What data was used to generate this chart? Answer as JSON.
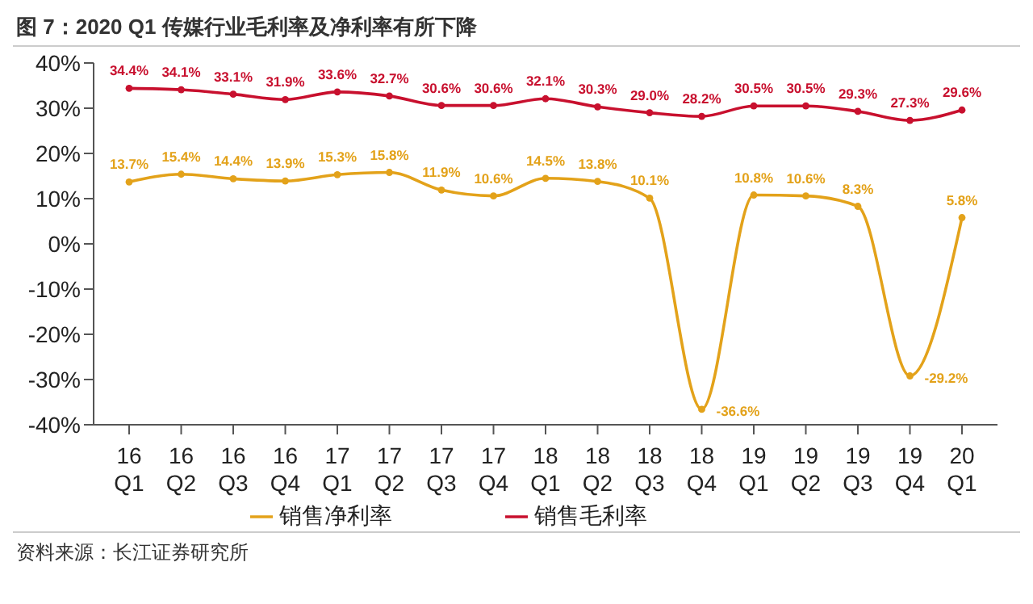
{
  "chart_data": {
    "type": "line",
    "title": "图 7：2020 Q1 传媒行业毛利率及净利率有所下降",
    "categories": [
      "16 Q1",
      "16 Q2",
      "16 Q3",
      "16 Q4",
      "17 Q1",
      "17 Q2",
      "17 Q3",
      "17 Q4",
      "18 Q1",
      "18 Q2",
      "18 Q3",
      "18 Q4",
      "19 Q1",
      "19 Q2",
      "19 Q3",
      "19 Q4",
      "20 Q1"
    ],
    "series": [
      {
        "name": "销售毛利率",
        "color": "#c8102e",
        "values": [
          34.4,
          34.1,
          33.1,
          31.9,
          33.6,
          32.7,
          30.6,
          30.6,
          32.1,
          30.3,
          29.0,
          28.2,
          30.5,
          30.5,
          29.3,
          27.3,
          29.6
        ],
        "value_labels": [
          "34.4%",
          "34.1%",
          "33.1%",
          "31.9%",
          "33.6%",
          "32.7%",
          "30.6%",
          "30.6%",
          "32.1%",
          "30.3%",
          "29.0%",
          "28.2%",
          "30.5%",
          "30.5%",
          "29.3%",
          "27.3%",
          "29.6%"
        ]
      },
      {
        "name": "销售净利率",
        "color": "#e3a21a",
        "values": [
          13.7,
          15.4,
          14.4,
          13.9,
          15.3,
          15.8,
          11.9,
          10.6,
          14.5,
          13.8,
          10.1,
          -36.6,
          10.8,
          10.6,
          8.3,
          -29.2,
          5.8
        ],
        "value_labels": [
          "13.7%",
          "15.4%",
          "14.4%",
          "13.9%",
          "15.3%",
          "15.8%",
          "11.9%",
          "10.6%",
          "14.5%",
          "13.8%",
          "10.1%",
          "-36.6%",
          "10.8%",
          "10.6%",
          "8.3%",
          "-29.2%",
          "5.8%"
        ]
      }
    ],
    "ylim": [
      -40,
      40
    ],
    "yticks": [
      {
        "value": -40,
        "label": "-40%"
      },
      {
        "value": -30,
        "label": "-30%"
      },
      {
        "value": -20,
        "label": "-20%"
      },
      {
        "value": -10,
        "label": "-10%"
      },
      {
        "value": 0,
        "label": "0%"
      },
      {
        "value": 10,
        "label": "10%"
      },
      {
        "value": 20,
        "label": "20%"
      },
      {
        "value": 30,
        "label": "30%"
      },
      {
        "value": 40,
        "label": "40%"
      }
    ],
    "grid": false,
    "legend": "bottom",
    "marker": "circle",
    "line_style": "solid",
    "annotations": [
      "资料来源：长江证券研究所"
    ]
  }
}
